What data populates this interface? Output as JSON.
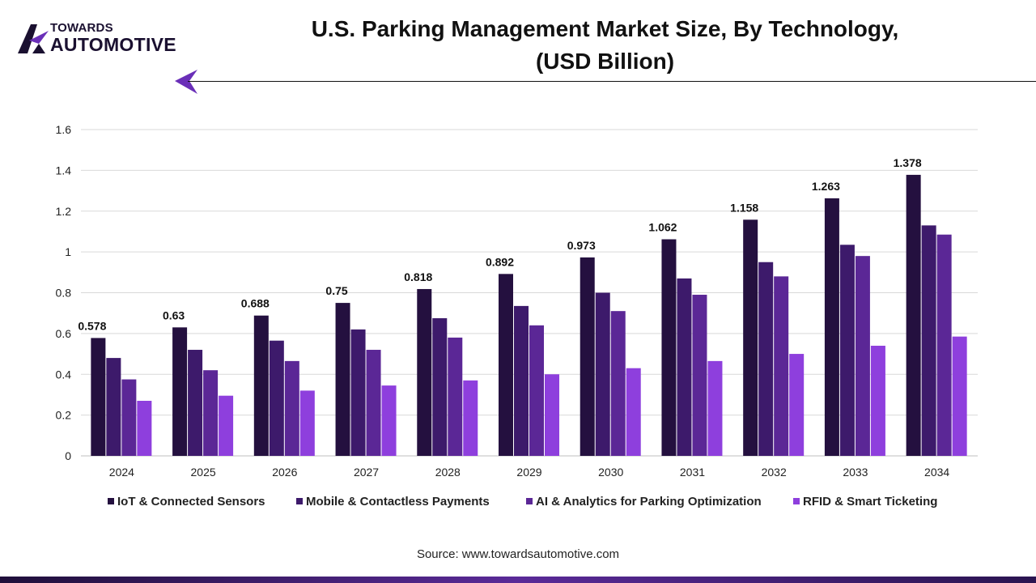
{
  "brand": {
    "line1": "TOWARDS",
    "line2": "AUTOMOTIVE"
  },
  "title": {
    "line1": "U.S. Parking Management Market Size, By Technology,",
    "line2": "(USD Billion)"
  },
  "source": "Source: www.towardsautomotive.com",
  "colors": {
    "series": [
      "#24103f",
      "#3d1a6b",
      "#5b2796",
      "#8e3fdd"
    ],
    "accent": "#6a2fb8",
    "grid": "#d9d9d9",
    "axis_text": "#222222"
  },
  "chart_data": {
    "type": "bar",
    "title": "U.S. Parking Management Market Size, By Technology, (USD Billion)",
    "xlabel": "",
    "ylabel": "",
    "ylim": [
      0,
      1.6
    ],
    "yticks": [
      "0",
      "0.2",
      "0.4",
      "0.6",
      "0.8",
      "1",
      "1.2",
      "1.4",
      "1.6"
    ],
    "grid": true,
    "legend": "bottom",
    "categories": [
      "2024",
      "2025",
      "2026",
      "2027",
      "2028",
      "2029",
      "2030",
      "2031",
      "2032",
      "2033",
      "2034"
    ],
    "series": [
      {
        "name": "IoT & Connected Sensors",
        "values": [
          0.578,
          0.63,
          0.688,
          0.75,
          0.818,
          0.892,
          0.973,
          1.062,
          1.158,
          1.263,
          1.378
        ],
        "labels": [
          "0.578",
          "0.63",
          "0.688",
          "0.75",
          "0.818",
          "0.892",
          "0.973",
          "1.062",
          "1.158",
          "1.263",
          "1.378"
        ]
      },
      {
        "name": "Mobile & Contactless Payments",
        "values": [
          0.48,
          0.52,
          0.565,
          0.62,
          0.675,
          0.735,
          0.8,
          0.87,
          0.95,
          1.035,
          1.13
        ]
      },
      {
        "name": "AI & Analytics for Parking Optimization",
        "values": [
          0.375,
          0.42,
          0.465,
          0.52,
          0.58,
          0.64,
          0.71,
          0.79,
          0.88,
          0.98,
          1.085
        ]
      },
      {
        "name": "RFID & Smart Ticketing",
        "values": [
          0.27,
          0.295,
          0.32,
          0.345,
          0.37,
          0.4,
          0.43,
          0.465,
          0.5,
          0.54,
          0.585
        ]
      }
    ]
  }
}
